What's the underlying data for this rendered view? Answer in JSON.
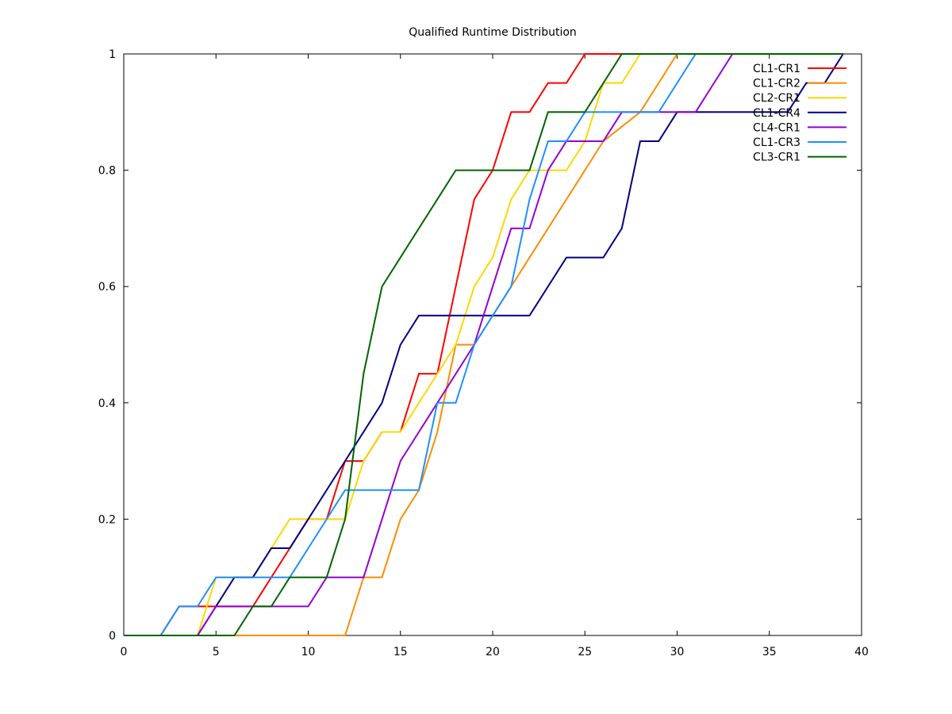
{
  "chart_data": {
    "type": "line",
    "title": "Qualified Runtime Distribution",
    "xlabel": "",
    "ylabel": "",
    "xlim": [
      0,
      40
    ],
    "ylim": [
      0,
      1
    ],
    "x_ticks": [
      "0",
      "5",
      "10",
      "15",
      "20",
      "25",
      "30",
      "35",
      "40"
    ],
    "y_ticks": [
      "0",
      "0.2",
      "0.4",
      "0.6",
      "0.8",
      "1"
    ],
    "grid": false,
    "legend_position": "top-right",
    "series": [
      {
        "name": "CL1-CR1",
        "color": "#ff0000",
        "points": [
          [
            0,
            0
          ],
          [
            2,
            0
          ],
          [
            3,
            0.05
          ],
          [
            4,
            0.05
          ],
          [
            5,
            0.05
          ],
          [
            6,
            0.05
          ],
          [
            7,
            0.05
          ],
          [
            8,
            0.1
          ],
          [
            9,
            0.15
          ],
          [
            10,
            0.2
          ],
          [
            11,
            0.2
          ],
          [
            12,
            0.3
          ],
          [
            13,
            0.3
          ],
          [
            14,
            0.35
          ],
          [
            15,
            0.35
          ],
          [
            16,
            0.45
          ],
          [
            17,
            0.45
          ],
          [
            18,
            0.6
          ],
          [
            19,
            0.75
          ],
          [
            20,
            0.8
          ],
          [
            21,
            0.9
          ],
          [
            22,
            0.9
          ],
          [
            23,
            0.95
          ],
          [
            24,
            0.95
          ],
          [
            25,
            1
          ],
          [
            27,
            1
          ]
        ]
      },
      {
        "name": "CL1-CR2",
        "color": "#ff8c00",
        "points": [
          [
            0,
            0
          ],
          [
            12,
            0
          ],
          [
            13,
            0.1
          ],
          [
            14,
            0.1
          ],
          [
            15,
            0.2
          ],
          [
            16,
            0.25
          ],
          [
            17,
            0.35
          ],
          [
            18,
            0.5
          ],
          [
            19,
            0.5
          ],
          [
            20,
            0.55
          ],
          [
            21,
            0.6
          ],
          [
            26,
            0.85
          ],
          [
            28,
            0.9
          ],
          [
            30,
            1
          ],
          [
            39,
            1
          ]
        ]
      },
      {
        "name": "CL2-CR1",
        "color": "#ffd700",
        "points": [
          [
            0,
            0
          ],
          [
            4,
            0
          ],
          [
            5,
            0.1
          ],
          [
            7,
            0.1
          ],
          [
            8,
            0.15
          ],
          [
            9,
            0.2
          ],
          [
            11,
            0.2
          ],
          [
            12,
            0.2
          ],
          [
            13,
            0.3
          ],
          [
            14,
            0.35
          ],
          [
            15,
            0.35
          ],
          [
            17,
            0.45
          ],
          [
            18,
            0.5
          ],
          [
            19,
            0.6
          ],
          [
            20,
            0.65
          ],
          [
            21,
            0.75
          ],
          [
            22,
            0.8
          ],
          [
            24,
            0.8
          ],
          [
            25,
            0.85
          ],
          [
            26,
            0.95
          ],
          [
            27,
            0.95
          ],
          [
            28,
            1
          ],
          [
            39,
            1
          ]
        ]
      },
      {
        "name": "CL1-CR4",
        "color": "#000080",
        "points": [
          [
            0,
            0
          ],
          [
            4,
            0
          ],
          [
            6,
            0.1
          ],
          [
            7,
            0.1
          ],
          [
            8,
            0.15
          ],
          [
            9,
            0.15
          ],
          [
            12,
            0.3
          ],
          [
            14,
            0.4
          ],
          [
            15,
            0.5
          ],
          [
            16,
            0.55
          ],
          [
            22,
            0.55
          ],
          [
            24,
            0.65
          ],
          [
            26,
            0.65
          ],
          [
            27,
            0.7
          ],
          [
            28,
            0.85
          ],
          [
            29,
            0.85
          ],
          [
            30,
            0.9
          ],
          [
            36,
            0.9
          ],
          [
            37,
            0.95
          ],
          [
            38,
            0.95
          ],
          [
            39,
            1
          ]
        ]
      },
      {
        "name": "CL4-CR1",
        "color": "#9400d3",
        "points": [
          [
            0,
            0
          ],
          [
            4,
            0
          ],
          [
            5,
            0.05
          ],
          [
            10,
            0.05
          ],
          [
            11,
            0.1
          ],
          [
            13,
            0.1
          ],
          [
            15,
            0.3
          ],
          [
            17,
            0.4
          ],
          [
            19,
            0.5
          ],
          [
            21,
            0.7
          ],
          [
            22,
            0.7
          ],
          [
            23,
            0.8
          ],
          [
            24,
            0.85
          ],
          [
            26,
            0.85
          ],
          [
            27,
            0.9
          ],
          [
            31,
            0.9
          ],
          [
            33,
            1
          ],
          [
            39,
            1
          ]
        ]
      },
      {
        "name": "CL1-CR3",
        "color": "#1e90ff",
        "points": [
          [
            0,
            0
          ],
          [
            2,
            0
          ],
          [
            3,
            0.05
          ],
          [
            4,
            0.05
          ],
          [
            5,
            0.1
          ],
          [
            9,
            0.1
          ],
          [
            12,
            0.25
          ],
          [
            16,
            0.25
          ],
          [
            17,
            0.4
          ],
          [
            18,
            0.4
          ],
          [
            19,
            0.5
          ],
          [
            21,
            0.6
          ],
          [
            22,
            0.75
          ],
          [
            23,
            0.85
          ],
          [
            24,
            0.85
          ],
          [
            25,
            0.9
          ],
          [
            29,
            0.9
          ],
          [
            31,
            1
          ],
          [
            39,
            1
          ]
        ]
      },
      {
        "name": "CL3-CR1",
        "color": "#006400",
        "points": [
          [
            0,
            0
          ],
          [
            6,
            0
          ],
          [
            7,
            0.05
          ],
          [
            8,
            0.05
          ],
          [
            9,
            0.1
          ],
          [
            11,
            0.1
          ],
          [
            12,
            0.2
          ],
          [
            13,
            0.45
          ],
          [
            14,
            0.6
          ],
          [
            18,
            0.8
          ],
          [
            22,
            0.8
          ],
          [
            23,
            0.9
          ],
          [
            25,
            0.9
          ],
          [
            27,
            1
          ],
          [
            39,
            1
          ]
        ]
      }
    ]
  }
}
